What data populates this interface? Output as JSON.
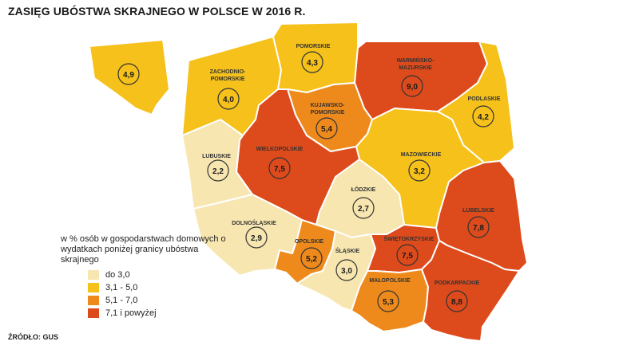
{
  "title": "ZASIĘG UBÓSTWA SKRAJNEGO W POLSCE W 2016 R.",
  "colors": {
    "c1": "#f7e6b0",
    "c2": "#f5c11a",
    "c3": "#ee8a1c",
    "c4": "#dd4a1c"
  },
  "regions": {
    "zachodniopomorskie": {
      "name1": "ZACHODNIO-",
      "name2": "POMORSKIE",
      "value": "4,0",
      "class": "c2"
    },
    "pomorskie": {
      "name1": "POMORSKIE",
      "name2": "",
      "value": "4,3",
      "class": "c2"
    },
    "warminsko": {
      "name1": "WARMIŃSKO-",
      "name2": "MAZURSKIE",
      "value": "9,0",
      "class": "c4"
    },
    "podlaskie": {
      "name1": "PODLASKIE",
      "name2": "",
      "value": "4,2",
      "class": "c2"
    },
    "lubuskie": {
      "name1": "LUBUSKIE",
      "name2": "",
      "value": "2,2",
      "class": "c1"
    },
    "wielkopolskie": {
      "name1": "WIELKOPOLSKIE",
      "name2": "",
      "value": "7,5",
      "class": "c4"
    },
    "kujawsko": {
      "name1": "KUJAWSKO-",
      "name2": "POMORSKIE",
      "value": "5,4",
      "class": "c3"
    },
    "mazowieckie": {
      "name1": "MAZOWIECKIE",
      "name2": "",
      "value": "3,2",
      "class": "c2"
    },
    "lodzkie": {
      "name1": "ŁÓDZKIE",
      "name2": "",
      "value": "2,7",
      "class": "c1"
    },
    "dolnoslaskie": {
      "name1": "DOLNOŚLĄSKIE",
      "name2": "",
      "value": "2,9",
      "class": "c1"
    },
    "opolskie": {
      "name1": "OPOLSKIE",
      "name2": "",
      "value": "5,2",
      "class": "c3"
    },
    "slaskie": {
      "name1": "ŚLĄSKIE",
      "name2": "",
      "value": "3,0",
      "class": "c1"
    },
    "swietokrzyskie": {
      "name1": "ŚWIĘTOKRZYSKIE",
      "name2": "",
      "value": "7,5",
      "class": "c4"
    },
    "malopolskie": {
      "name1": "MAŁOPOLSKIE",
      "name2": "",
      "value": "5,3",
      "class": "c3"
    },
    "lubelskie": {
      "name1": "LUBELSKIE",
      "name2": "",
      "value": "7,8",
      "class": "c4"
    },
    "podkarpackie": {
      "name1": "PODKARPACKIE",
      "name2": "",
      "value": "8,8",
      "class": "c4"
    },
    "inset": {
      "value": "4,9",
      "class": "c2"
    }
  },
  "legend": {
    "title": "w % osób w gospodarstwach domowych o wydatkach poniżej granicy ubóstwa skrajnego",
    "items": [
      {
        "label": "do 3,0",
        "class": "c1"
      },
      {
        "label": "3,1 - 5,0",
        "class": "c2"
      },
      {
        "label": "5,1 - 7,0",
        "class": "c3"
      },
      {
        "label": "7,1 i powyżej",
        "class": "c4"
      }
    ]
  },
  "source": "ŹRÓDŁO: GUS"
}
